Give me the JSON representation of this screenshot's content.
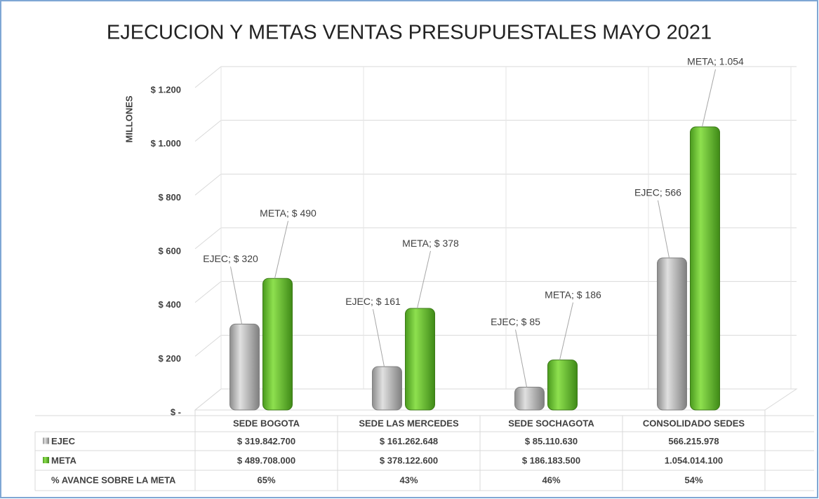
{
  "chart_data": {
    "type": "bar",
    "title": "EJECUCION Y METAS VENTAS PRESUPUESTALES MAYO 2021",
    "y_label": "MILLONES",
    "categories": [
      "SEDE BOGOTA",
      "SEDE LAS MERCEDES",
      "SEDE SOCHAGOTA",
      "CONSOLIDADO SEDES"
    ],
    "series": [
      {
        "name": "EJEC",
        "color": "#a6a6a6",
        "values": [
          319.8427,
          161.262648,
          85.11063,
          566.215978
        ],
        "value_labels": [
          "EJEC; $ 320",
          "EJEC; $ 161",
          "EJEC; $ 85",
          "EJEC;  566"
        ],
        "table_values": [
          "$ 319.842.700",
          "$ 161.262.648",
          "$ 85.110.630",
          "566.215.978"
        ]
      },
      {
        "name": "META",
        "color": "#6fc934",
        "values": [
          489.708,
          378.1226,
          186.1835,
          1054.0141
        ],
        "value_labels": [
          "META; $ 490",
          "META; $ 378",
          "META; $ 186",
          "META; 1.054"
        ],
        "table_values": [
          "$ 489.708.000",
          "$ 378.122.600",
          "$ 186.183.500",
          "1.054.014.100"
        ]
      }
    ],
    "avance": {
      "label": "% AVANCE SOBRE LA META",
      "values": [
        "65%",
        "43%",
        "46%",
        "54%"
      ]
    },
    "ylim": [
      0,
      1200
    ],
    "yticks": [
      {
        "value": 0,
        "label": "$ -"
      },
      {
        "value": 200,
        "label": "$ 200"
      },
      {
        "value": 400,
        "label": "$ 400"
      },
      {
        "value": 600,
        "label": "$ 600"
      },
      {
        "value": 800,
        "label": "$ 800"
      },
      {
        "value": 1000,
        "label": "$ 1.000"
      },
      {
        "value": 1200,
        "label": "$ 1.200"
      }
    ],
    "grid": true
  }
}
